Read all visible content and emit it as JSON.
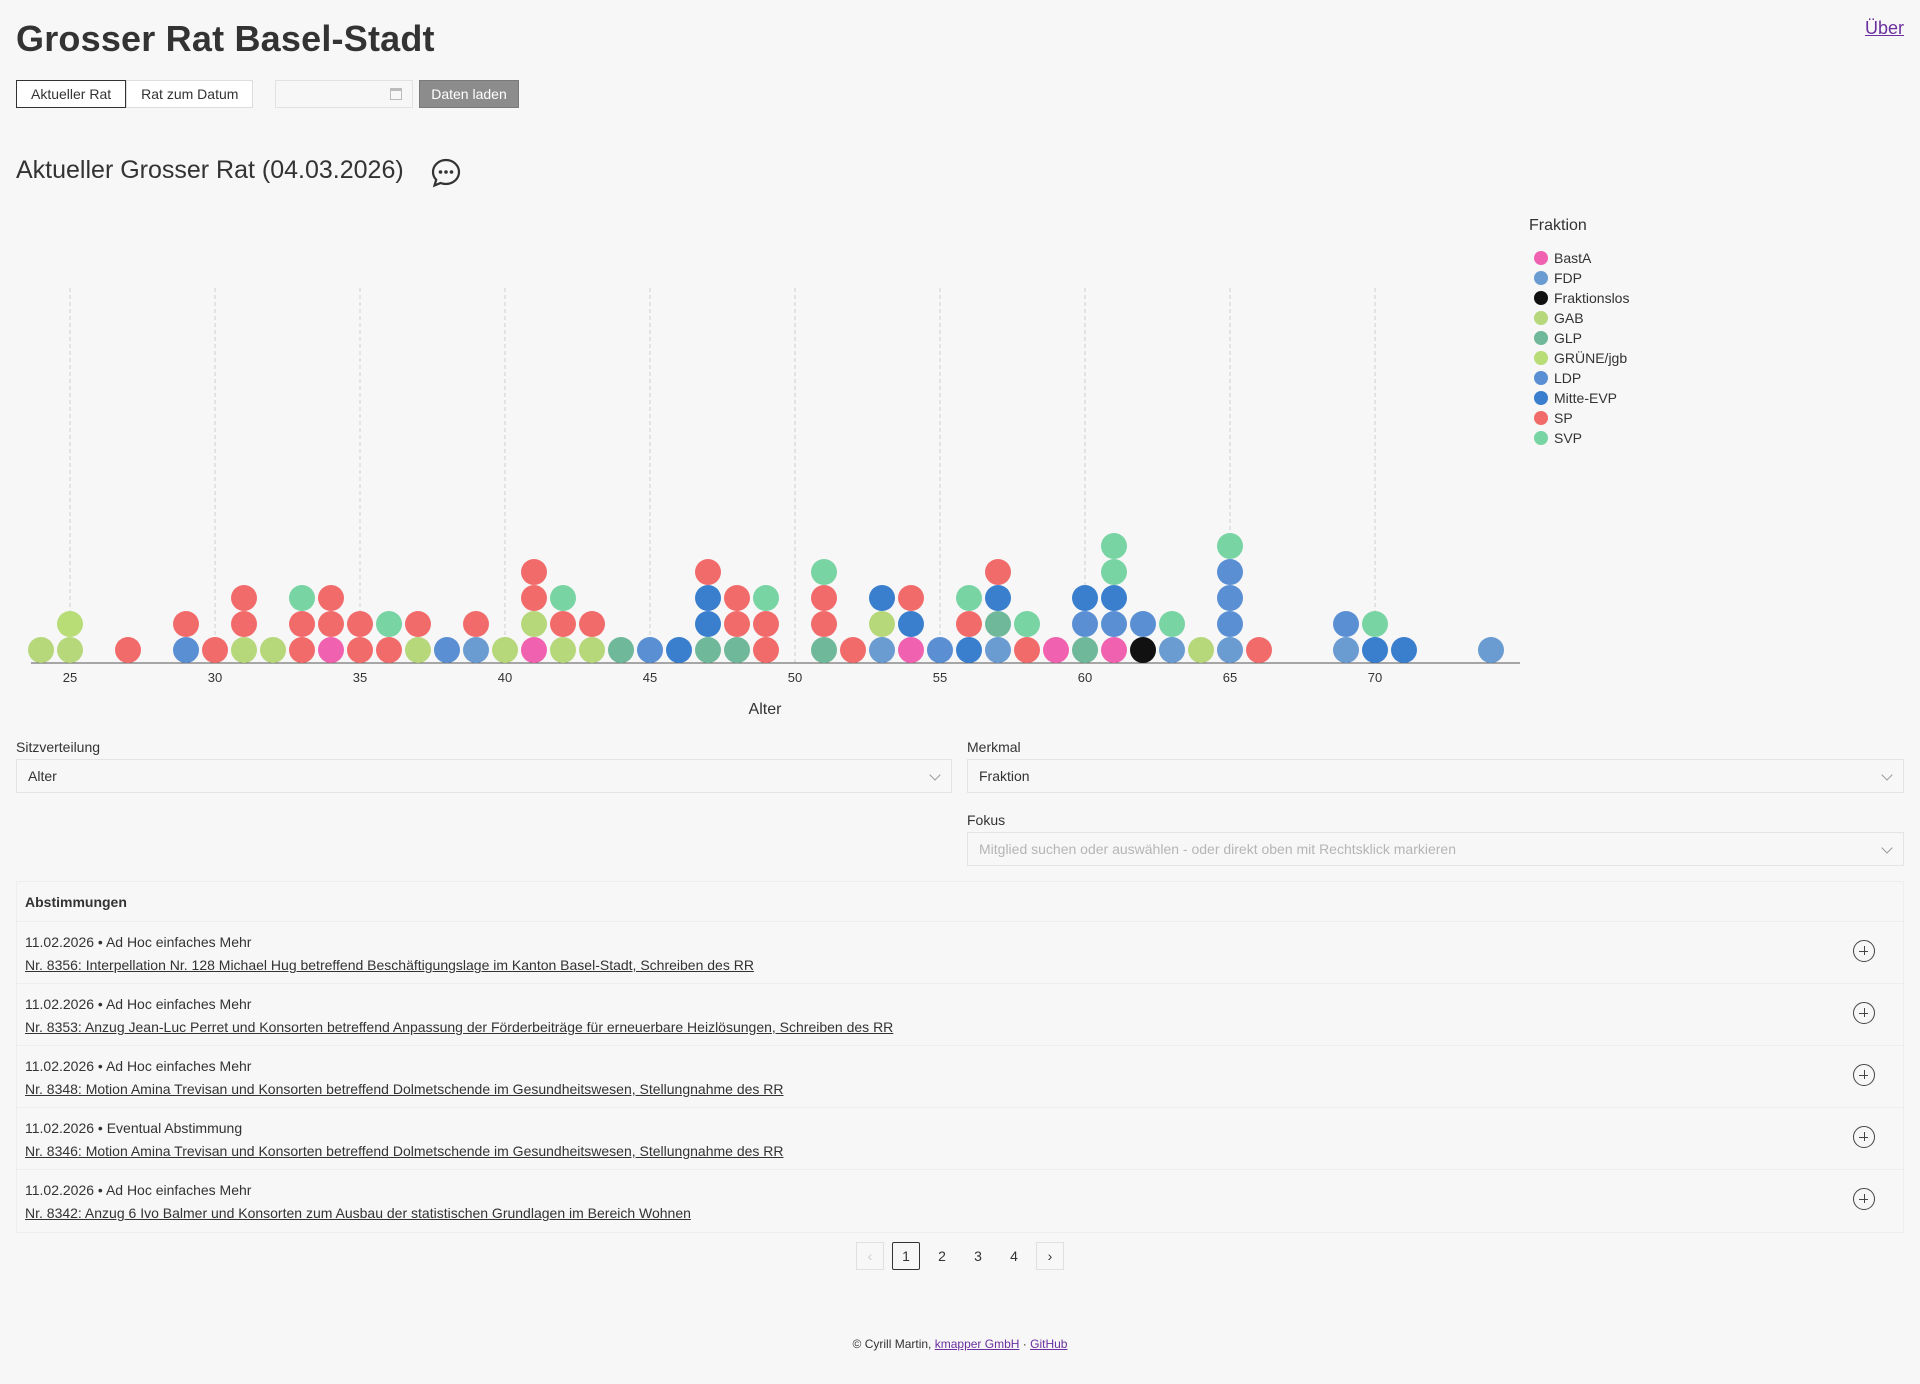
{
  "app": {
    "title": "Grosser Rat Basel-Stadt",
    "about_link": "Über"
  },
  "mode_tabs": [
    {
      "label": "Aktueller Rat",
      "active": true
    },
    {
      "label": "Rat zum Datum",
      "active": false
    }
  ],
  "date_input": {
    "value": ""
  },
  "load_button": "Daten laden",
  "section_title": "Aktueller Grosser Rat (04.03.2026)",
  "chart_data": {
    "type": "scatter",
    "title": "",
    "xlabel": "Alter",
    "ylabel": "",
    "x_ticks": [
      25,
      30,
      35,
      40,
      45,
      50,
      55,
      60,
      65,
      70
    ],
    "xlim": [
      24,
      75
    ],
    "grid": "vertical dashed at ticks",
    "legend_title": "Fraktion",
    "legend_position": "right",
    "colors": {
      "BastA": "#f062b0",
      "FDP": "#6a9bd1",
      "Fraktionslos": "#111111",
      "GAB": "#b6d77a",
      "GLP": "#6fb89a",
      "GRÜNE/jgb": "#b8dc76",
      "LDP": "#5b8fd4",
      "Mitte-EVP": "#3a7fce",
      "SP": "#f26b6b",
      "SVP": "#79d4a4"
    },
    "series": [
      {
        "name": "BastA",
        "ages": [
          34,
          41,
          54,
          59,
          61
        ]
      },
      {
        "name": "FDP",
        "ages": [
          39,
          53,
          57,
          63,
          65,
          69,
          74
        ]
      },
      {
        "name": "Fraktionslos",
        "ages": [
          62
        ]
      },
      {
        "name": "GAB",
        "ages": [
          24,
          25,
          31,
          32,
          37,
          40,
          41,
          42,
          43,
          53,
          64
        ]
      },
      {
        "name": "GLP",
        "ages": [
          44,
          47,
          48,
          51,
          57,
          60
        ]
      },
      {
        "name": "GRÜNE/jgb",
        "ages": [
          25
        ]
      },
      {
        "name": "LDP",
        "ages": [
          29,
          38,
          45,
          55,
          60,
          61,
          62,
          65,
          65,
          65,
          69
        ]
      },
      {
        "name": "Mitte-EVP",
        "ages": [
          46,
          47,
          47,
          53,
          54,
          56,
          57,
          60,
          61,
          70,
          71
        ]
      },
      {
        "name": "SP",
        "ages": [
          27,
          29,
          30,
          31,
          31,
          33,
          33,
          34,
          34,
          35,
          35,
          36,
          37,
          39,
          41,
          41,
          42,
          43,
          47,
          48,
          48,
          49,
          49,
          51,
          51,
          52,
          54,
          56,
          57,
          58,
          66
        ]
      },
      {
        "name": "SVP",
        "ages": [
          33,
          36,
          42,
          49,
          51,
          56,
          58,
          61,
          61,
          63,
          65,
          70
        ]
      }
    ]
  },
  "controls": {
    "sitzverteilung_label": "Sitzverteilung",
    "sitzverteilung_value": "Alter",
    "merkmal_label": "Merkmal",
    "merkmal_value": "Fraktion",
    "fokus_label": "Fokus",
    "fokus_placeholder": "Mitglied suchen oder auswählen - oder direkt oben mit Rechtsklick markieren"
  },
  "votes": {
    "header": "Abstimmungen",
    "items": [
      {
        "meta": "11.02.2026 • Ad Hoc einfaches Mehr",
        "title": "Nr. 8356: Interpellation Nr. 128 Michael Hug betreffend Beschäftigungslage im Kanton Basel-Stadt, Schreiben des RR"
      },
      {
        "meta": "11.02.2026 • Ad Hoc einfaches Mehr",
        "title": "Nr. 8353: Anzug Jean-Luc Perret und Konsorten betreffend Anpassung der Förderbeiträge für erneuerbare Heizlösungen, Schreiben des RR"
      },
      {
        "meta": "11.02.2026 • Ad Hoc einfaches Mehr",
        "title": "Nr. 8348: Motion Amina Trevisan und Konsorten betreffend Dolmetschende im Gesundheitswesen, Stellungnahme des RR"
      },
      {
        "meta": "11.02.2026 • Eventual Abstimmung",
        "title": "Nr. 8346: Motion Amina Trevisan und Konsorten betreffend Dolmetschende im Gesundheitswesen, Stellungnahme des RR"
      },
      {
        "meta": "11.02.2026 • Ad Hoc einfaches Mehr",
        "title": "Nr. 8342: Anzug 6 Ivo Balmer und Konsorten zum Ausbau der statistischen Grundlagen im Bereich Wohnen"
      }
    ]
  },
  "pagination": {
    "pages": [
      "1",
      "2",
      "3",
      "4"
    ],
    "current": "1",
    "prev": "‹",
    "next": "›"
  },
  "footer": {
    "copyright": "© Cyrill Martin,",
    "link1": "kmapper GmbH",
    "separator": "·",
    "link2": "GitHub"
  }
}
